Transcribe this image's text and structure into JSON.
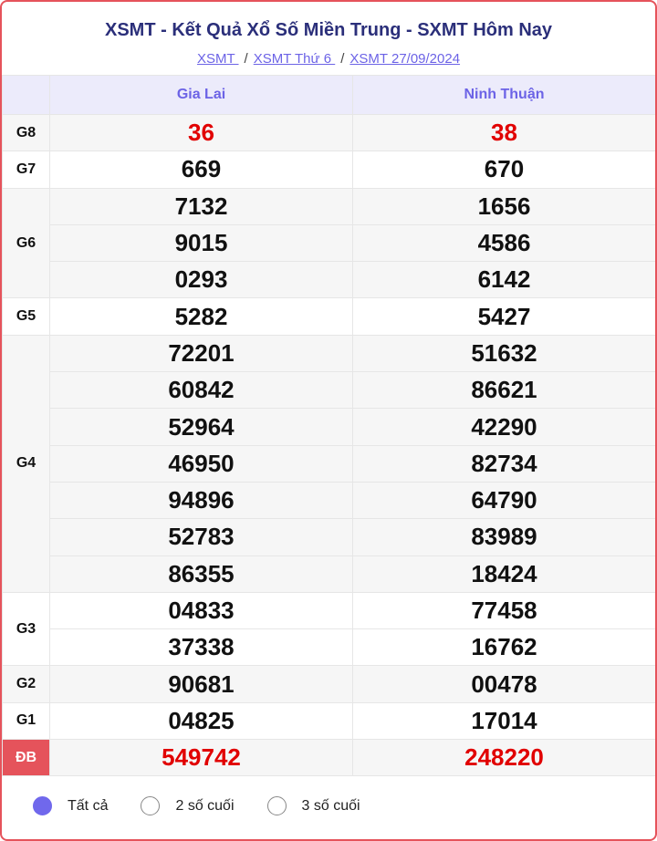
{
  "title": "XSMT - Kết Quả Xổ Số Miền Trung - SXMT Hôm Nay",
  "breadcrumb": [
    "XSMT ",
    "XSMT Thứ 6 ",
    "XSMT 27/09/2024"
  ],
  "columns": [
    "Gia Lai",
    "Ninh Thuận"
  ],
  "prizes": [
    {
      "label": "G8",
      "highlight": true,
      "values": [
        [
          "36"
        ],
        [
          "38"
        ]
      ]
    },
    {
      "label": "G7",
      "values": [
        [
          "669"
        ],
        [
          "670"
        ]
      ]
    },
    {
      "label": "G6",
      "values": [
        [
          "7132",
          "9015",
          "0293"
        ],
        [
          "1656",
          "4586",
          "6142"
        ]
      ]
    },
    {
      "label": "G5",
      "values": [
        [
          "5282"
        ],
        [
          "5427"
        ]
      ]
    },
    {
      "label": "G4",
      "values": [
        [
          "72201",
          "60842",
          "52964",
          "46950",
          "94896",
          "52783",
          "86355"
        ],
        [
          "51632",
          "86621",
          "42290",
          "82734",
          "64790",
          "83989",
          "18424"
        ]
      ]
    },
    {
      "label": "G3",
      "values": [
        [
          "04833",
          "37338"
        ],
        [
          "77458",
          "16762"
        ]
      ]
    },
    {
      "label": "G2",
      "values": [
        [
          "90681"
        ],
        [
          "00478"
        ]
      ]
    },
    {
      "label": "G1",
      "values": [
        [
          "04825"
        ],
        [
          "17014"
        ]
      ]
    },
    {
      "label": "ĐB",
      "highlight": true,
      "special": true,
      "values": [
        [
          "549742"
        ],
        [
          "248220"
        ]
      ]
    }
  ],
  "filters": [
    {
      "label": "Tất cả",
      "selected": true
    },
    {
      "label": "2 số cuối",
      "selected": false
    },
    {
      "label": "3 số cuối",
      "selected": false
    }
  ],
  "colors": {
    "accent": "#6c63e6",
    "border": "#e5535b",
    "red": "#e10000"
  }
}
